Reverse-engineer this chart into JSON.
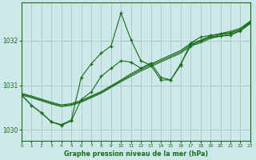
{
  "title": "Graphe pression niveau de la mer (hPa)",
  "bg_color": "#cce8e8",
  "grid_color": "#aacccc",
  "line_color": "#1a6b1a",
  "xlim": [
    0,
    23
  ],
  "ylim": [
    1029.75,
    1032.85
  ],
  "yticks": [
    1030,
    1031,
    1032
  ],
  "xticks": [
    0,
    1,
    2,
    3,
    4,
    5,
    6,
    7,
    8,
    9,
    10,
    11,
    12,
    13,
    14,
    15,
    16,
    17,
    18,
    19,
    20,
    21,
    22,
    23
  ],
  "band_lines": [
    [
      1030.78,
      1030.72,
      1030.65,
      1030.58,
      1030.52,
      1030.55,
      1030.62,
      1030.72,
      1030.82,
      1030.95,
      1031.08,
      1031.2,
      1031.32,
      1031.42,
      1031.52,
      1031.62,
      1031.72,
      1031.88,
      1031.95,
      1032.05,
      1032.1,
      1032.15,
      1032.22,
      1032.38
    ],
    [
      1030.8,
      1030.74,
      1030.67,
      1030.6,
      1030.54,
      1030.57,
      1030.64,
      1030.74,
      1030.84,
      1030.97,
      1031.1,
      1031.23,
      1031.35,
      1031.45,
      1031.55,
      1031.65,
      1031.75,
      1031.91,
      1031.98,
      1032.08,
      1032.13,
      1032.18,
      1032.25,
      1032.41
    ],
    [
      1030.82,
      1030.76,
      1030.69,
      1030.62,
      1030.56,
      1030.59,
      1030.66,
      1030.76,
      1030.86,
      1030.99,
      1031.12,
      1031.26,
      1031.38,
      1031.48,
      1031.58,
      1031.68,
      1031.78,
      1031.94,
      1032.01,
      1032.11,
      1032.16,
      1032.21,
      1032.28,
      1032.44
    ]
  ],
  "main_series_y": [
    1030.78,
    1030.55,
    1030.38,
    1030.18,
    1030.12,
    1030.22,
    1031.18,
    1031.48,
    1031.72,
    1031.88,
    1032.62,
    1032.02,
    1031.55,
    1031.45,
    1031.12,
    1031.12,
    1031.45,
    1031.95,
    1032.08,
    1032.12,
    1032.15,
    1032.18,
    1032.25,
    1032.42
  ],
  "secondary_series_y": [
    1030.78,
    1030.55,
    1030.38,
    1030.18,
    1030.1,
    1030.2,
    1030.68,
    1030.85,
    1031.2,
    1031.38,
    1031.55,
    1031.52,
    1031.38,
    1031.5,
    1031.18,
    1031.12,
    1031.48,
    1031.88,
    1032.0,
    1032.08,
    1032.1,
    1032.12,
    1032.22,
    1032.4
  ]
}
